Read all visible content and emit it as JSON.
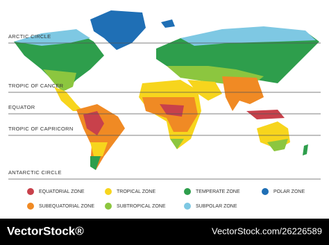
{
  "map": {
    "lines": [
      {
        "label": "ARCTIC CIRCLE"
      },
      {
        "label": "TROPIC OF CANCER"
      },
      {
        "label": "EQUATOR"
      },
      {
        "label": "TROPIC OF CAPRICORN"
      },
      {
        "label": "ANTARCTIC CIRCLE"
      }
    ]
  },
  "legend": {
    "items": [
      {
        "name": "EQUATORIAL ZONE",
        "color": "#c8414b"
      },
      {
        "name": "TROPICAL ZONE",
        "color": "#f7d51d"
      },
      {
        "name": "TEMPERATE ZONE",
        "color": "#2e9e4c"
      },
      {
        "name": "POLAR ZONE",
        "color": "#1f6fb5"
      },
      {
        "name": "SUBEQUATORIAL ZONE",
        "color": "#f08a24"
      },
      {
        "name": "SUBTROPICAL ZONE",
        "color": "#8cc63f"
      },
      {
        "name": "SUBPOLAR ZONE",
        "color": "#7ec8e3"
      }
    ]
  },
  "footer": {
    "brand": "VectorStock®",
    "id": "VectorStock.com/26226589"
  }
}
